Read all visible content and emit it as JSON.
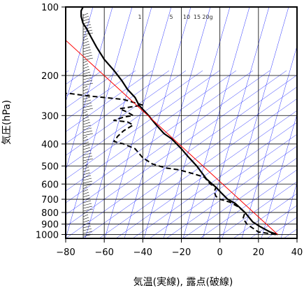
{
  "chart_data": {
    "type": "line",
    "title": "",
    "xlabel": "気温(実線), 露点(破線)",
    "ylabel": "気圧(hPa)",
    "x_unit": "°C",
    "y_scale": "log",
    "y_reversed": true,
    "xlim": [
      -80,
      40
    ],
    "ylim": [
      1040,
      100
    ],
    "x_ticks": [
      -80,
      -60,
      -40,
      -20,
      0,
      20,
      40
    ],
    "y_ticks": [
      100,
      200,
      300,
      400,
      500,
      600,
      700,
      800,
      900,
      1000
    ],
    "mixing_ratio_labels": [
      "1",
      "5",
      "10",
      "15",
      "20g"
    ],
    "grid": true,
    "series": [
      {
        "style": "solid-thick-black",
        "points": [
          [
            30,
            1000
          ],
          [
            26,
            975
          ],
          [
            21,
            925
          ],
          [
            17,
            880
          ],
          [
            13,
            800
          ],
          [
            8,
            730
          ],
          [
            4,
            700
          ],
          [
            1,
            660
          ],
          [
            -2,
            620
          ],
          [
            -5,
            590
          ],
          [
            -7,
            570
          ],
          [
            -12,
            500
          ],
          [
            -17,
            450
          ],
          [
            -20,
            420
          ],
          [
            -25,
            380
          ],
          [
            -29,
            360
          ],
          [
            -33,
            330
          ],
          [
            -37,
            300
          ],
          [
            -42,
            270
          ],
          [
            -44,
            250
          ],
          [
            -48,
            230
          ],
          [
            -51,
            210
          ],
          [
            -55,
            190
          ],
          [
            -60,
            170
          ],
          [
            -64,
            150
          ],
          [
            -67,
            135
          ],
          [
            -69,
            125
          ],
          [
            -71,
            118
          ],
          [
            -72,
            110
          ],
          [
            -72,
            104
          ],
          [
            -71,
            100
          ]
        ]
      },
      {
        "style": "dashed-thick-black",
        "points": [
          [
            29,
            1000
          ],
          [
            20,
            975
          ],
          [
            16,
            925
          ],
          [
            14,
            900
          ],
          [
            12,
            850
          ],
          [
            13,
            800
          ],
          [
            10,
            760
          ],
          [
            5,
            720
          ],
          [
            0,
            700
          ],
          [
            -2,
            680
          ],
          [
            -3,
            650
          ],
          [
            -2,
            620
          ],
          [
            -5,
            600
          ],
          [
            -8,
            560
          ],
          [
            -14,
            540
          ],
          [
            -21,
            520
          ],
          [
            -28,
            510
          ],
          [
            -35,
            490
          ],
          [
            -40,
            460
          ],
          [
            -44,
            420
          ],
          [
            -50,
            400
          ],
          [
            -55,
            390
          ],
          [
            -53,
            370
          ],
          [
            -50,
            350
          ],
          [
            -45,
            330
          ],
          [
            -48,
            320
          ],
          [
            -55,
            315
          ],
          [
            -50,
            305
          ],
          [
            -45,
            300
          ],
          [
            -48,
            290
          ],
          [
            -52,
            280
          ],
          [
            -40,
            270
          ],
          [
            -50,
            255
          ],
          [
            -60,
            250
          ],
          [
            -70,
            245
          ],
          [
            -78,
            240
          ],
          [
            -80,
            240
          ]
        ]
      },
      {
        "style": "solid-thin-red",
        "points": [
          [
            30,
            1000
          ],
          [
            -80,
            140
          ]
        ]
      }
    ]
  }
}
